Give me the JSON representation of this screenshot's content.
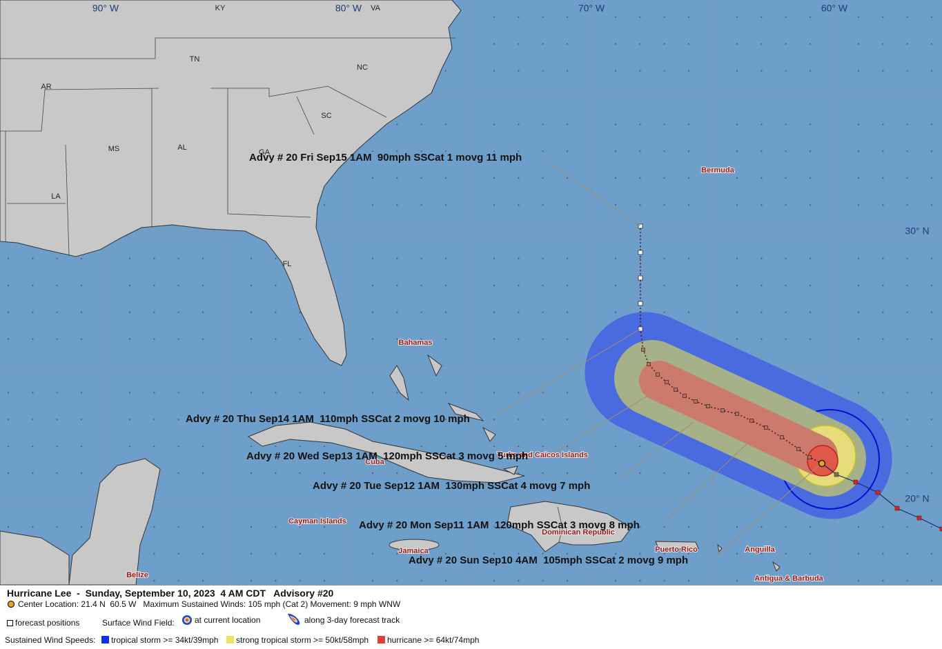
{
  "map": {
    "grid_labels": [
      "90° W",
      "80° W",
      "70° W",
      "60° W",
      "30° N",
      "20° N"
    ],
    "state_labels": [
      "KY",
      "VA",
      "TN",
      "NC",
      "AR",
      "SC",
      "GA",
      "MS",
      "AL",
      "LA",
      "FL"
    ],
    "place_labels": [
      "Bermuda",
      "Bahamas",
      "Turks and Caicos Islands",
      "Cuba",
      "Cayman Islands",
      "Dominican Republic",
      "Jamaica",
      "Puerto Rico",
      "Anguilla",
      "Belize",
      "Antigua & Barbuda"
    ],
    "advisories": [
      "Advy # 20 Fri Sep15 1AM  90mph SSCat 1 movg 11 mph",
      "Advy # 20 Thu Sep14 1AM  110mph SSCat 2 movg 10 mph",
      "Advy # 20 Wed Sep13 1AM  120mph SSCat 3 movg 5 mph",
      "Advy # 20 Tue Sep12 1AM  130mph SSCat 4 movg 7 mph",
      "Advy # 20 Mon Sep11 1AM  120mph SSCat 3 movg 8 mph",
      "Advy # 20 Sun Sep10 4AM  105mph SSCat 2 movg 9 mph"
    ]
  },
  "legend": {
    "title": "Hurricane Lee  -  Sunday, September 10, 2023  4 AM CDT   Advisory #20",
    "center": "Center Location: 21.4 N  60.5 W   Maximum Sustained Winds: 105 mph (Cat 2) Movement: 9 mph WNW",
    "forecast_positions": "forecast positions",
    "wind_field": "Surface Wind Field:",
    "current_location": "at current location",
    "forecast_track": "along 3-day forecast track",
    "wind_speeds": "Sustained Wind Speeds:",
    "tropical_storm": "tropical storm >= 34kt/39mph",
    "strong_tropical_storm": "strong tropical storm >= 50kt/58mph",
    "hurricane": "hurricane >= 64kt/74mph"
  }
}
